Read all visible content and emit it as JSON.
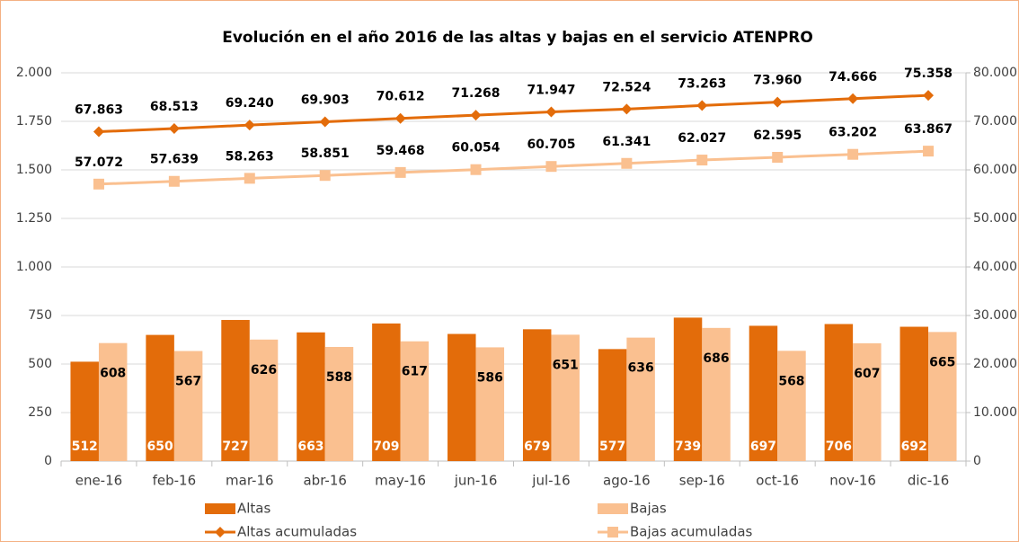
{
  "chart_data": {
    "type": "combo",
    "title": "Evolución en el año 2016 de las altas y bajas en el servicio ATENPRO",
    "categories": [
      "ene-16",
      "feb-16",
      "mar-16",
      "abr-16",
      "may-16",
      "jun-16",
      "jul-16",
      "ago-16",
      "sep-16",
      "oct-16",
      "nov-16",
      "dic-16"
    ],
    "ylim": [
      0,
      2000
    ],
    "yticks": [
      0,
      250,
      500,
      750,
      {
        "value": 1000,
        "label": "1.000"
      },
      {
        "value": 1250,
        "label": "1.250"
      },
      {
        "value": 1500,
        "label": "1.500"
      },
      {
        "value": 1750,
        "label": "1.750"
      },
      {
        "value": 2000,
        "label": "2.000"
      }
    ],
    "y2lim": [
      0,
      80000
    ],
    "y2ticks": [
      0,
      {
        "value": 10000,
        "label": "10.000"
      },
      {
        "value": 20000,
        "label": "20.000"
      },
      {
        "value": 30000,
        "label": "30.000"
      },
      {
        "value": 40000,
        "label": "40.000"
      },
      {
        "value": 50000,
        "label": "50.000"
      },
      {
        "value": 60000,
        "label": "60.000"
      },
      {
        "value": 70000,
        "label": "70.000"
      },
      {
        "value": 80000,
        "label": "80.000"
      }
    ],
    "grid": true,
    "legend": "bottom",
    "series": [
      {
        "name": "Altas",
        "type": "bar",
        "color": "#e36c0a",
        "values": [
          512,
          650,
          727,
          663,
          709,
          655,
          679,
          577,
          739,
          697,
          706,
          692
        ],
        "value_labels": [
          "512",
          "650",
          "727",
          "663",
          "709",
          null,
          "679",
          "577",
          "739",
          "697",
          "706",
          "692"
        ]
      },
      {
        "name": "Bajas",
        "type": "bar",
        "color": "#fac090",
        "values": [
          608,
          567,
          626,
          588,
          617,
          586,
          651,
          636,
          686,
          568,
          607,
          665
        ]
      },
      {
        "name": "Altas acumuladas",
        "type": "line",
        "axis": "y2",
        "marker": "diamond",
        "color": "#e36c0a",
        "values": [
          67863,
          68513,
          69240,
          69903,
          70612,
          71268,
          71947,
          72524,
          73263,
          73960,
          74666,
          75358
        ],
        "value_labels": [
          "67.863",
          "68.513",
          "69.240",
          "69.903",
          "70.612",
          "71.268",
          "71.947",
          "72.524",
          "73.263",
          "73.960",
          "74.666",
          "75.358"
        ]
      },
      {
        "name": "Bajas acumuladas",
        "type": "line",
        "axis": "y2",
        "marker": "square",
        "color": "#fac090",
        "values": [
          57072,
          57639,
          58263,
          58851,
          59468,
          60054,
          60705,
          61341,
          62027,
          62595,
          63202,
          63867
        ],
        "value_labels": [
          "57.072",
          "57.639",
          "58.263",
          "58.851",
          "59.468",
          "60.054",
          "60.705",
          "61.341",
          "62.027",
          "62.595",
          "63.202",
          "63.867"
        ]
      }
    ]
  }
}
